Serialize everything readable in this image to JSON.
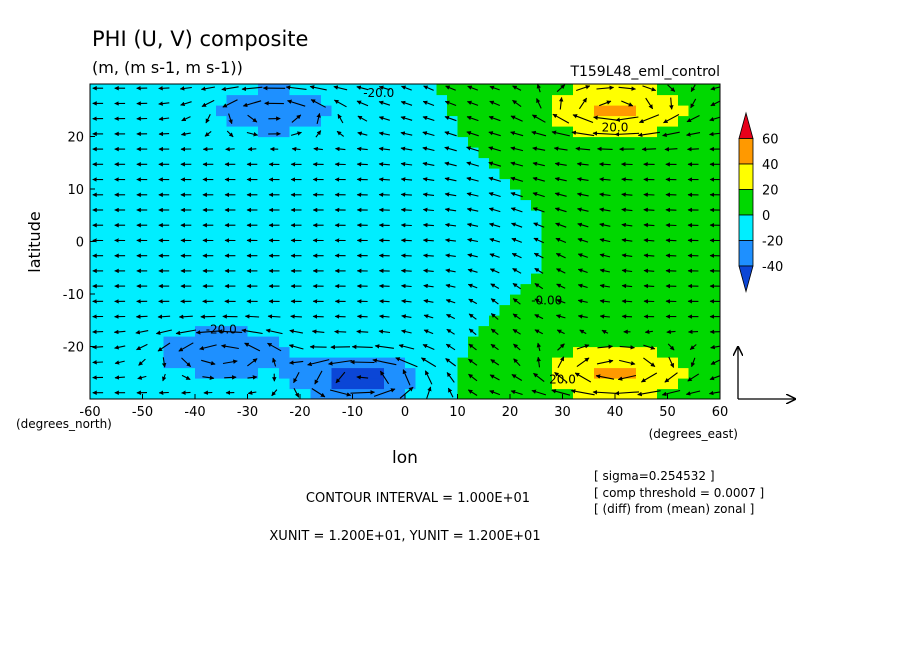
{
  "chart_data": {
    "type": "heatmap",
    "title": "PHI (U, V) composite",
    "subtitle": "(m, (m s-1, m s-1))",
    "experiment": "T159L48_eml_control",
    "xlabel": "lon",
    "ylabel": "latitude",
    "x_unit_label": "(degrees_east)",
    "y_unit_label": "(degrees_north)",
    "xlim": [
      -60,
      60
    ],
    "ylim": [
      -30,
      30
    ],
    "x_ticks": [
      -60,
      -50,
      -40,
      -30,
      -20,
      -10,
      0,
      10,
      20,
      30,
      40,
      50,
      60
    ],
    "y_ticks": [
      -20,
      -10,
      0,
      10,
      20
    ],
    "x_tick_labels": [
      "-60",
      "-50",
      "-40",
      "-30",
      "-20",
      "-10",
      "0",
      "10",
      "20",
      "30",
      "40",
      "50",
      "60"
    ],
    "y_tick_labels": [
      "-20",
      "-10",
      "0",
      "10",
      "20"
    ],
    "legend": {
      "placement": "right",
      "labels": [
        "60",
        "40",
        "20",
        "0",
        "-20",
        "-40"
      ],
      "bins": [
        {
          "from": 60,
          "to": 70,
          "color": "#e8001a"
        },
        {
          "from": 40,
          "to": 60,
          "color": "#ff9900"
        },
        {
          "from": 20,
          "to": 40,
          "color": "#ffff00"
        },
        {
          "from": 0,
          "to": 20,
          "color": "#00d800"
        },
        {
          "from": -20,
          "to": 0,
          "color": "#00eeff"
        },
        {
          "from": -40,
          "to": -20,
          "color": "#1e90ff"
        },
        {
          "from": -50,
          "to": -40,
          "color": "#0b46d6"
        }
      ]
    },
    "contour_labels": [
      {
        "text": "-20.0",
        "x": -5,
        "y": 27.5
      },
      {
        "text": "20.0",
        "x": 40,
        "y": 21
      },
      {
        "text": "-0.00",
        "x": 27,
        "y": -12
      },
      {
        "text": "-20.0",
        "x": -35,
        "y": -17.5
      },
      {
        "text": "20.0",
        "x": 30,
        "y": -27
      }
    ],
    "features": [
      {
        "kind": "low",
        "x": -25,
        "y": 25,
        "value": -25
      },
      {
        "kind": "low",
        "x": -35,
        "y": -21,
        "value": -28
      },
      {
        "kind": "low",
        "x": -8,
        "y": -26,
        "value": -42
      },
      {
        "kind": "high",
        "x": 40,
        "y": 25,
        "value": 35
      },
      {
        "kind": "high",
        "x": 40,
        "y": -25,
        "value": 35
      }
    ],
    "vector_reference": {
      "xunit": "1.200E+01",
      "yunit": "1.200E+01"
    },
    "contour_interval_text": "CONTOUR INTERVAL = 1.000E+01",
    "units_text": "XUNIT = 1.200E+01, YUNIT = 1.200E+01",
    "notes": [
      "[ sigma=0.254532 ]",
      "[ comp threshold = 0.0007 ]",
      "[ (diff) from (mean) zonal ]"
    ]
  }
}
